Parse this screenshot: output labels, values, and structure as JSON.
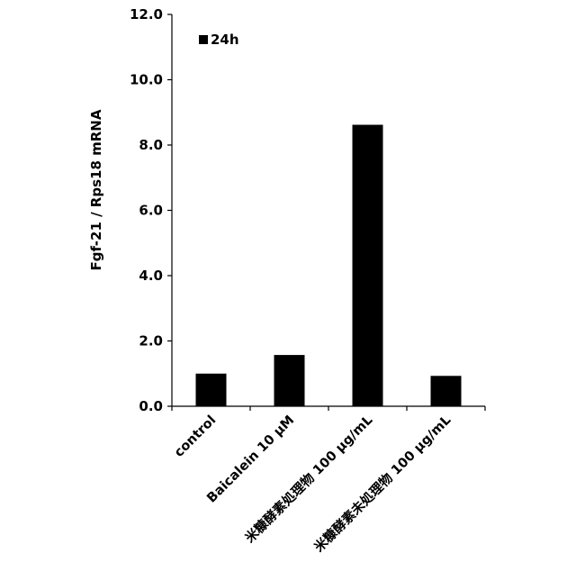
{
  "chart_data": {
    "type": "bar",
    "title": "",
    "xlabel": "",
    "ylabel": "Fgf-21 / Rps18 mRNA",
    "ylim": [
      0,
      12
    ],
    "yticks": [
      "0.0",
      "2.0",
      "4.0",
      "6.0",
      "8.0",
      "10.0",
      "12.0"
    ],
    "categories": [
      "control",
      "Baicalein  10 μM",
      "米糠酵素処理物  100 μg/mL",
      "米糠酵素未処理物  100 μg/mL"
    ],
    "series": [
      {
        "name": "24h",
        "values": [
          1.0,
          1.57,
          8.62,
          0.93
        ],
        "color": "#000000"
      }
    ],
    "legend_position": "top-left",
    "grid": false
  }
}
